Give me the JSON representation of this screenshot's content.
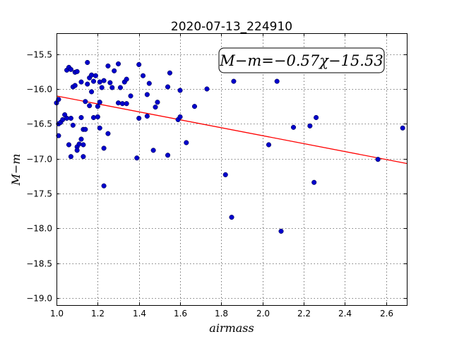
{
  "chart_data": {
    "type": "scatter",
    "title": "2020-07-13_224910",
    "xlabel": "airmass",
    "ylabel": "M−m",
    "xlim": [
      1.0,
      2.7
    ],
    "ylim": [
      -15.2,
      -19.1
    ],
    "y_inverted": true,
    "grid": true,
    "x_ticks": [
      1.0,
      1.2,
      1.4,
      1.6,
      1.8,
      2.0,
      2.2,
      2.4,
      2.6
    ],
    "x_tick_labels": [
      "1.0",
      "1.2",
      "1.4",
      "1.6",
      "1.8",
      "2.0",
      "2.2",
      "2.4",
      "2.6"
    ],
    "y_ticks": [
      -15.5,
      -16.0,
      -16.5,
      -17.0,
      -17.5,
      -18.0,
      -18.5,
      -19.0
    ],
    "y_tick_labels": [
      "−15.5",
      "−16.0",
      "−16.5",
      "−17.0",
      "−17.5",
      "−18.0",
      "−18.5",
      "−19.0"
    ],
    "annotation": "M−m=−0.57χ−15.53",
    "fit": {
      "slope": -0.57,
      "intercept": -15.53,
      "color": "#ff0000"
    },
    "point_color": "#0000cc",
    "points": [
      [
        1.0,
        -16.2
      ],
      [
        1.01,
        -16.15
      ],
      [
        1.01,
        -16.67
      ],
      [
        1.01,
        -16.5
      ],
      [
        1.02,
        -16.48
      ],
      [
        1.03,
        -16.44
      ],
      [
        1.04,
        -16.37
      ],
      [
        1.05,
        -16.42
      ],
      [
        1.05,
        -15.73
      ],
      [
        1.06,
        -16.8
      ],
      [
        1.06,
        -15.69
      ],
      [
        1.07,
        -15.72
      ],
      [
        1.07,
        -16.42
      ],
      [
        1.07,
        -16.97
      ],
      [
        1.08,
        -15.97
      ],
      [
        1.08,
        -16.52
      ],
      [
        1.09,
        -15.95
      ],
      [
        1.09,
        -15.76
      ],
      [
        1.1,
        -15.75
      ],
      [
        1.1,
        -16.83
      ],
      [
        1.1,
        -16.88
      ],
      [
        1.11,
        -16.79
      ],
      [
        1.12,
        -15.9
      ],
      [
        1.12,
        -16.72
      ],
      [
        1.12,
        -16.41
      ],
      [
        1.13,
        -16.58
      ],
      [
        1.13,
        -16.8
      ],
      [
        1.13,
        -16.97
      ],
      [
        1.14,
        -16.58
      ],
      [
        1.14,
        -16.18
      ],
      [
        1.15,
        -15.62
      ],
      [
        1.15,
        -15.93
      ],
      [
        1.16,
        -15.84
      ],
      [
        1.16,
        -16.24
      ],
      [
        1.17,
        -16.04
      ],
      [
        1.17,
        -15.8
      ],
      [
        1.18,
        -16.41
      ],
      [
        1.18,
        -15.89
      ],
      [
        1.19,
        -15.81
      ],
      [
        1.2,
        -16.4
      ],
      [
        1.2,
        -16.25
      ],
      [
        1.21,
        -16.19
      ],
      [
        1.21,
        -16.56
      ],
      [
        1.21,
        -15.9
      ],
      [
        1.22,
        -15.98
      ],
      [
        1.23,
        -15.88
      ],
      [
        1.23,
        -16.85
      ],
      [
        1.23,
        -17.39
      ],
      [
        1.25,
        -15.67
      ],
      [
        1.25,
        -16.64
      ],
      [
        1.26,
        -15.91
      ],
      [
        1.27,
        -15.98
      ],
      [
        1.28,
        -15.74
      ],
      [
        1.3,
        -15.64
      ],
      [
        1.3,
        -16.2
      ],
      [
        1.31,
        -15.98
      ],
      [
        1.32,
        -16.21
      ],
      [
        1.33,
        -15.9
      ],
      [
        1.34,
        -15.86
      ],
      [
        1.34,
        -16.21
      ],
      [
        1.36,
        -16.1
      ],
      [
        1.39,
        -16.99
      ],
      [
        1.4,
        -15.65
      ],
      [
        1.4,
        -16.42
      ],
      [
        1.42,
        -15.81
      ],
      [
        1.44,
        -16.39
      ],
      [
        1.44,
        -16.08
      ],
      [
        1.45,
        -15.92
      ],
      [
        1.47,
        -16.88
      ],
      [
        1.48,
        -16.26
      ],
      [
        1.49,
        -16.19
      ],
      [
        1.54,
        -16.95
      ],
      [
        1.54,
        -15.97
      ],
      [
        1.55,
        -15.77
      ],
      [
        1.59,
        -16.44
      ],
      [
        1.6,
        -16.4
      ],
      [
        1.6,
        -16.02
      ],
      [
        1.63,
        -16.77
      ],
      [
        1.67,
        -16.25
      ],
      [
        1.73,
        -16.0
      ],
      [
        1.82,
        -17.23
      ],
      [
        1.85,
        -17.84
      ],
      [
        1.86,
        -15.89
      ],
      [
        2.03,
        -16.8
      ],
      [
        2.07,
        -15.89
      ],
      [
        2.09,
        -18.04
      ],
      [
        2.15,
        -16.55
      ],
      [
        2.23,
        -16.53
      ],
      [
        2.25,
        -17.34
      ],
      [
        2.26,
        -16.41
      ],
      [
        2.56,
        -17.01
      ],
      [
        2.68,
        -16.56
      ]
    ]
  }
}
